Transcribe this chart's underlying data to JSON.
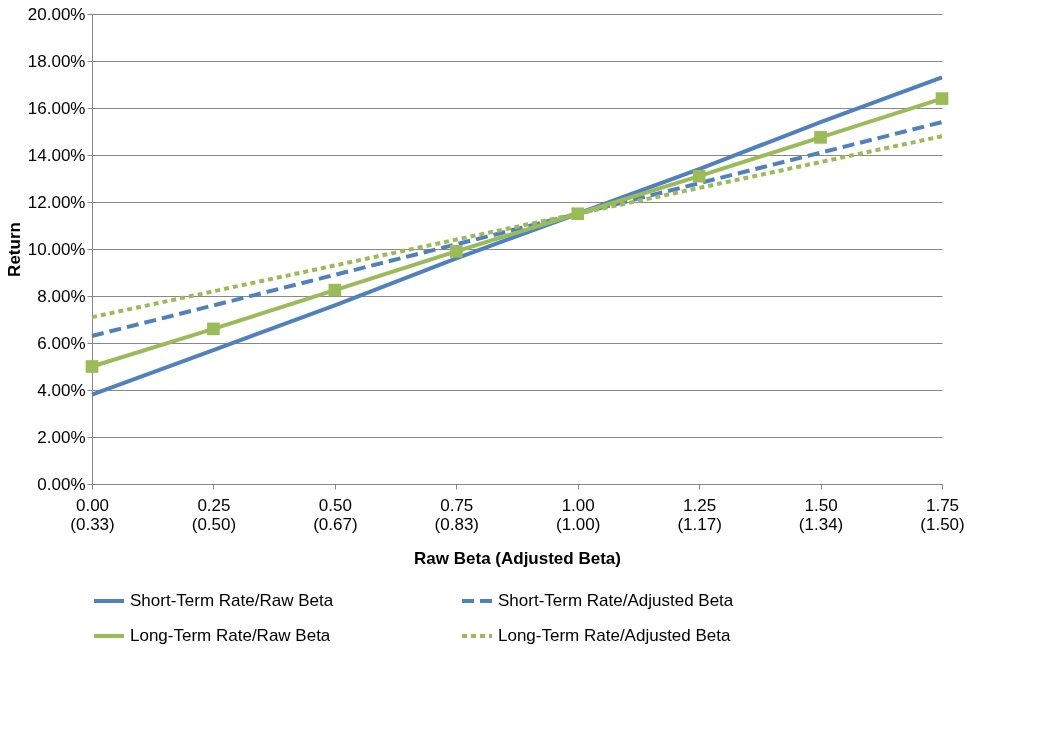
{
  "chart_data": {
    "type": "line",
    "xlabel": "Raw Beta (Adjusted Beta)",
    "ylabel": "Return",
    "categories": [
      "0.00\n(0.33)",
      "0.25\n(0.50)",
      "0.50\n(0.67)",
      "0.75\n(0.83)",
      "1.00\n(1.00)",
      "1.25\n(1.17)",
      "1.50\n(1.34)",
      "1.75\n(1.50)"
    ],
    "series": [
      {
        "name": "Short-Term Rate/Raw Beta",
        "color": "#4f81bd",
        "line_style": "solid",
        "marker": "none",
        "values": [
          3.8,
          5.7,
          7.6,
          9.6,
          11.5,
          13.4,
          15.4,
          17.3
        ]
      },
      {
        "name": "Short-Term Rate/Adjusted Beta",
        "color": "#4f81bd",
        "line_style": "dashed",
        "marker": "none",
        "values": [
          6.3,
          7.6,
          8.9,
          10.2,
          11.5,
          12.8,
          14.1,
          15.4
        ]
      },
      {
        "name": "Long-Term Rate/Raw Beta",
        "color": "#9bbb59",
        "line_style": "solid",
        "marker": "square",
        "values": [
          5.0,
          6.6,
          8.25,
          9.9,
          11.5,
          13.1,
          14.75,
          16.4
        ]
      },
      {
        "name": "Long-Term Rate/Adjusted Beta",
        "color": "#9bbb59",
        "line_style": "dotted",
        "marker": "none",
        "values": [
          7.1,
          8.2,
          9.3,
          10.4,
          11.5,
          12.6,
          13.7,
          14.8
        ]
      }
    ],
    "ylim": [
      0,
      20
    ],
    "yticks": [
      {
        "value": 0,
        "label": "0.00%"
      },
      {
        "value": 2,
        "label": "2.00%"
      },
      {
        "value": 4,
        "label": "4.00%"
      },
      {
        "value": 6,
        "label": "6.00%"
      },
      {
        "value": 8,
        "label": "8.00%"
      },
      {
        "value": 10,
        "label": "10.00%"
      },
      {
        "value": 12,
        "label": "12.00%"
      },
      {
        "value": 14,
        "label": "14.00%"
      },
      {
        "value": 16,
        "label": "16.00%"
      },
      {
        "value": 18,
        "label": "18.00%"
      },
      {
        "value": 20,
        "label": "20.00%"
      }
    ],
    "grid": "y",
    "legend": "bottom"
  }
}
